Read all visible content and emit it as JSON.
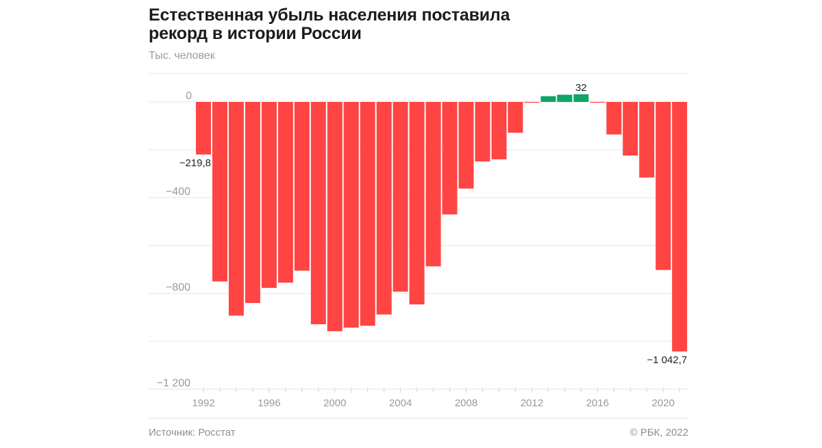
{
  "header": {
    "title_line1": "Естественная убыль населения поставила",
    "title_line2": "рекорд в истории России",
    "unit": "Тыс. человек"
  },
  "footer": {
    "source": "Источник: Росстат",
    "copyright": "© РБК, 2022"
  },
  "colors": {
    "negative": "#ff4444",
    "positive": "#0fa56a",
    "grid": "#e6e6e6",
    "tick_text": "#9a9a9a"
  },
  "chart_data": {
    "type": "bar",
    "title": "Естественная убыль населения поставила рекорд в истории России",
    "ylabel": "Тыс. человек",
    "xlabel": "",
    "ylim": [
      -1200,
      100
    ],
    "yticks": [
      0,
      -400,
      -800,
      -1200
    ],
    "ytick_labels": [
      "0",
      "−400",
      "−800",
      "−1 200"
    ],
    "grid_values": [
      0,
      -200,
      -400,
      -600,
      -800,
      -1000,
      -1200
    ],
    "xtick_labels": [
      "1992",
      "1996",
      "2000",
      "2004",
      "2008",
      "2012",
      "2016",
      "2020"
    ],
    "categories": [
      "1992",
      "1993",
      "1994",
      "1995",
      "1996",
      "1997",
      "1998",
      "1999",
      "2000",
      "2001",
      "2002",
      "2003",
      "2004",
      "2005",
      "2006",
      "2007",
      "2008",
      "2009",
      "2010",
      "2011",
      "2012",
      "2013",
      "2014",
      "2015",
      "2016",
      "2017",
      "2018",
      "2019",
      "2020",
      "2021"
    ],
    "values": [
      -219.8,
      -750,
      -893,
      -840,
      -777,
      -755,
      -705,
      -929,
      -958,
      -943,
      -935,
      -888,
      -793,
      -846,
      -687,
      -470,
      -362,
      -249,
      -240,
      -129,
      -2.6,
      24,
      30,
      32,
      -2.3,
      -136,
      -224,
      -316,
      -702,
      -1042.7
    ],
    "annotations": [
      {
        "category": "1992",
        "label": "−219,8"
      },
      {
        "category": "2015",
        "label": "32"
      },
      {
        "category": "2021",
        "label": "−1 042,7"
      }
    ],
    "grid": true,
    "legend": "none"
  }
}
